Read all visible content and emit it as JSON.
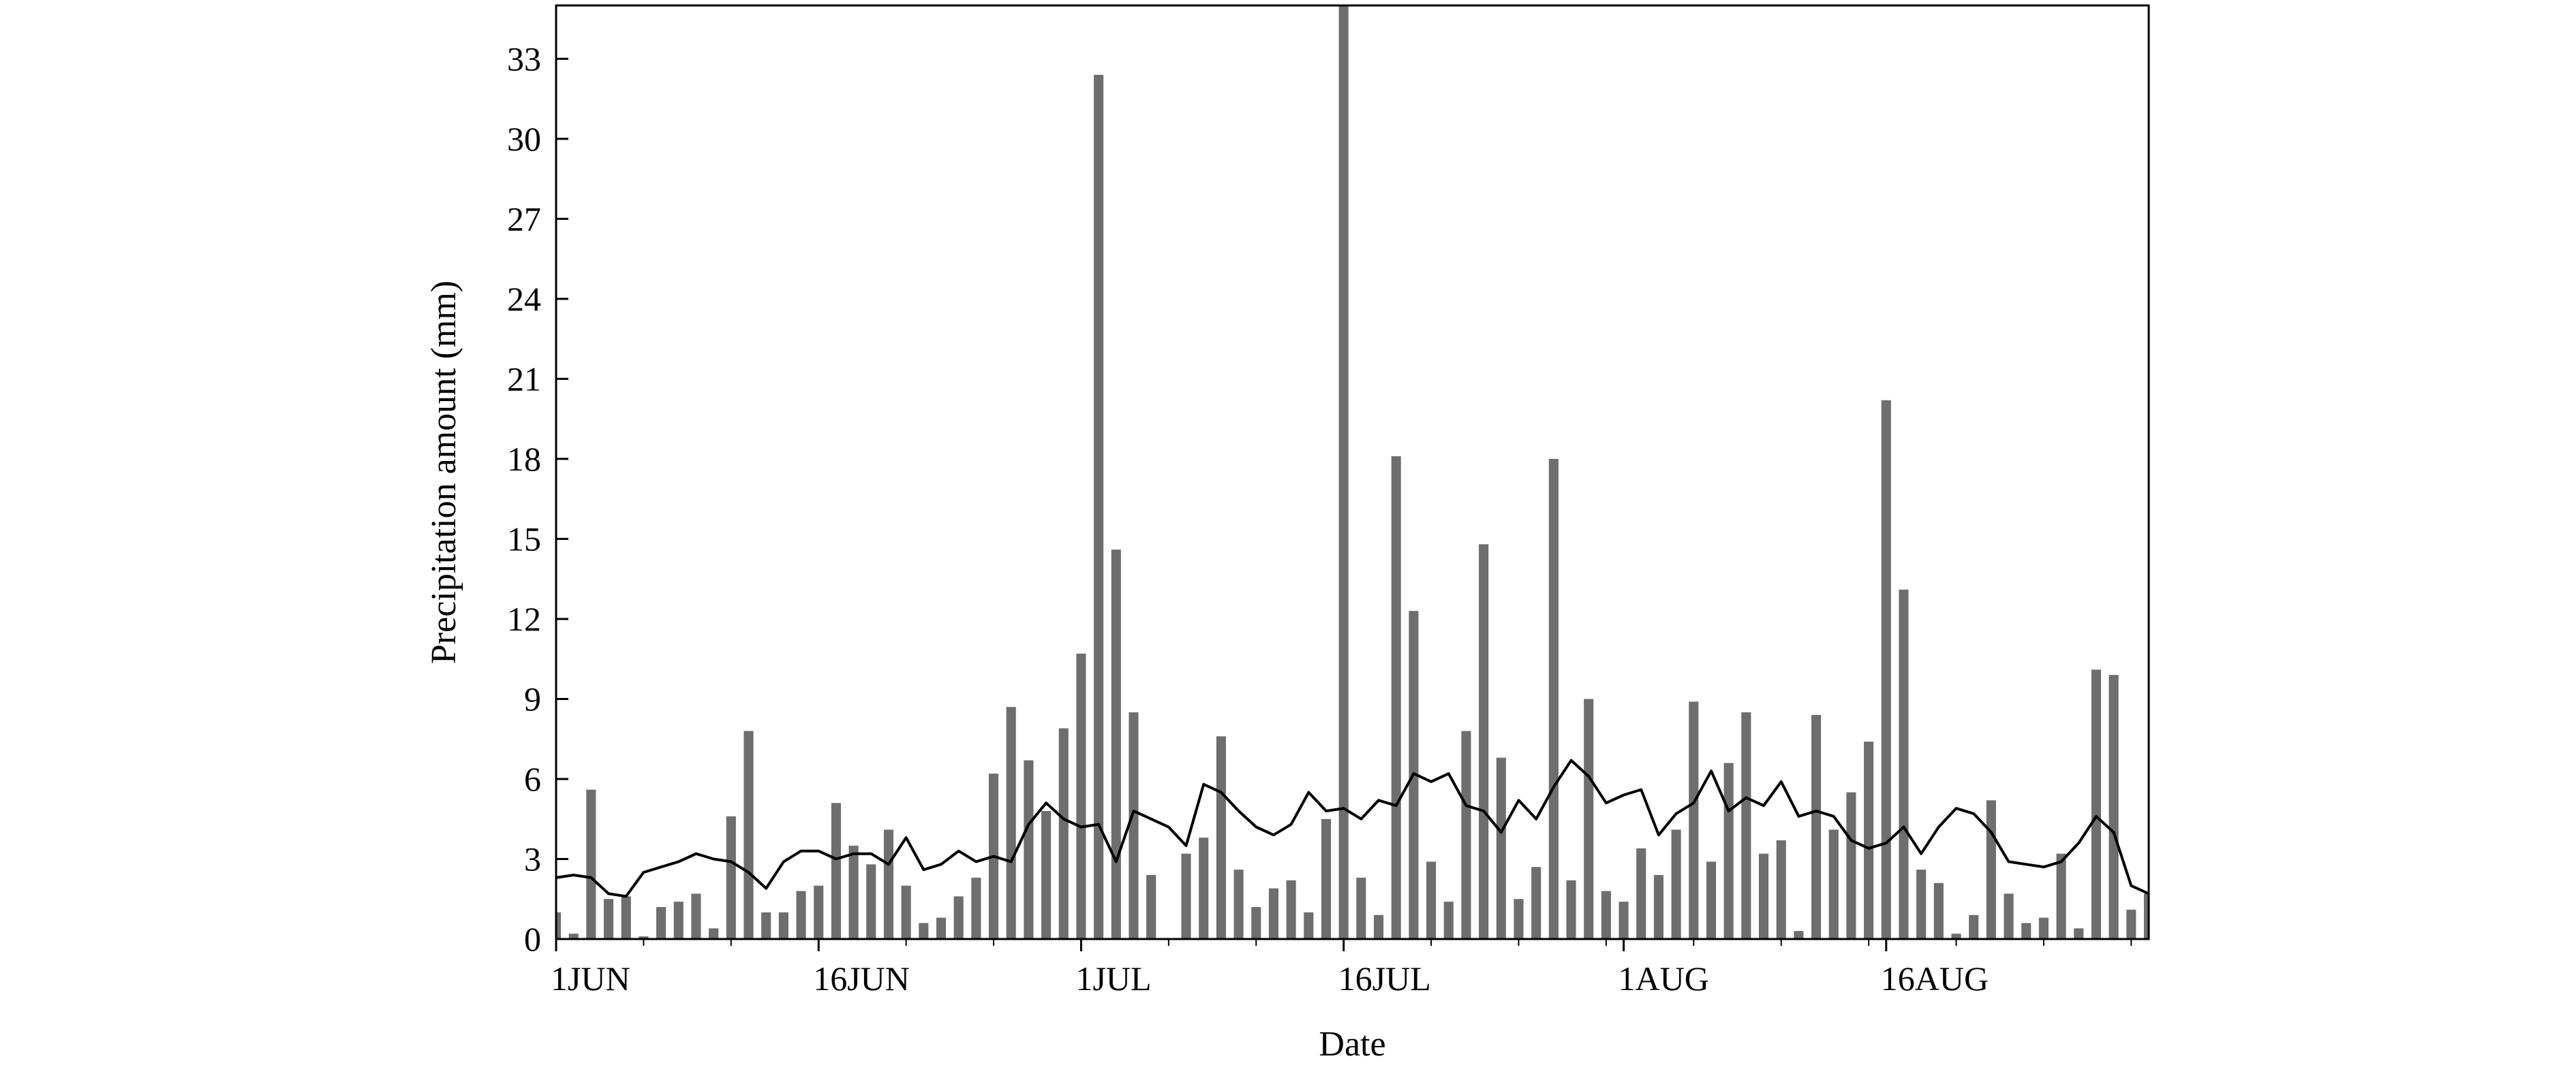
{
  "chart_data": {
    "type": "bar",
    "title": "",
    "xlabel": "Date",
    "ylabel": "Precipitation amount (mm)",
    "ylim": [
      0,
      35
    ],
    "yticks": [
      0,
      3,
      6,
      9,
      12,
      15,
      18,
      21,
      24,
      27,
      30,
      33
    ],
    "xlim": [
      "1JUN",
      "31AUG"
    ],
    "xtick_labels": [
      {
        "label": "1JUN",
        "day": 0
      },
      {
        "label": "16JUN",
        "day": 15
      },
      {
        "label": "1JUL",
        "day": 30
      },
      {
        "label": "16JUL",
        "day": 45
      },
      {
        "label": "1AUG",
        "day": 61
      },
      {
        "label": "16AUG",
        "day": 76
      }
    ],
    "grid": false,
    "legend": "none",
    "colors": {
      "bars": "#6e6e6e",
      "line": "#000000"
    },
    "series": [
      {
        "type": "bar",
        "values": [
          1.0,
          0.2,
          5.6,
          1.5,
          1.6,
          0.1,
          1.2,
          1.4,
          1.7,
          0.4,
          4.6,
          7.8,
          1.0,
          1.0,
          1.8,
          2.0,
          5.1,
          3.5,
          2.8,
          4.1,
          2.0,
          0.6,
          0.8,
          1.6,
          2.3,
          6.2,
          8.7,
          6.7,
          4.8,
          7.9,
          10.7,
          32.4,
          14.6,
          8.5,
          2.4,
          0.0,
          3.2,
          3.8,
          7.6,
          2.6,
          1.2,
          1.9,
          2.2,
          1.0,
          4.5,
          35.0,
          2.3,
          0.9,
          18.1,
          12.3,
          2.9,
          1.4,
          7.8,
          14.8,
          6.8,
          1.5,
          2.7,
          18.0,
          2.2,
          9.0,
          1.8,
          1.4,
          3.4,
          2.4,
          4.1,
          8.9,
          2.9,
          6.6,
          8.5,
          3.2,
          3.7,
          0.3,
          8.4,
          4.1,
          5.5,
          7.4,
          20.2,
          13.1,
          2.6,
          2.1,
          0.2,
          0.9,
          5.2,
          1.7,
          0.6,
          0.8,
          3.2,
          0.4,
          10.1,
          9.9,
          1.1,
          1.7
        ]
      },
      {
        "type": "line",
        "values": [
          2.3,
          2.4,
          2.3,
          1.7,
          1.6,
          2.5,
          2.7,
          2.9,
          3.2,
          3.0,
          2.9,
          2.5,
          1.9,
          2.9,
          3.3,
          3.3,
          3.0,
          3.2,
          3.2,
          2.8,
          3.8,
          2.6,
          2.8,
          3.3,
          2.9,
          3.1,
          2.9,
          4.3,
          5.1,
          4.5,
          4.2,
          4.3,
          2.9,
          4.8,
          4.5,
          4.2,
          3.5,
          5.8,
          5.5,
          4.8,
          4.2,
          3.9,
          4.3,
          5.5,
          4.8,
          4.9,
          4.5,
          5.2,
          5.0,
          6.2,
          5.9,
          6.2,
          5.0,
          4.8,
          4.0,
          5.2,
          4.5,
          5.7,
          6.7,
          6.1,
          5.1,
          5.4,
          5.6,
          3.9,
          4.7,
          5.1,
          6.3,
          4.8,
          5.3,
          5.0,
          5.9,
          4.6,
          4.8,
          4.6,
          3.7,
          3.4,
          3.6,
          4.2,
          3.2,
          4.2,
          4.9,
          4.7,
          4.0,
          2.9,
          2.8,
          2.7,
          2.9,
          3.6,
          4.6,
          4.0,
          2.0,
          1.7
        ]
      }
    ]
  }
}
